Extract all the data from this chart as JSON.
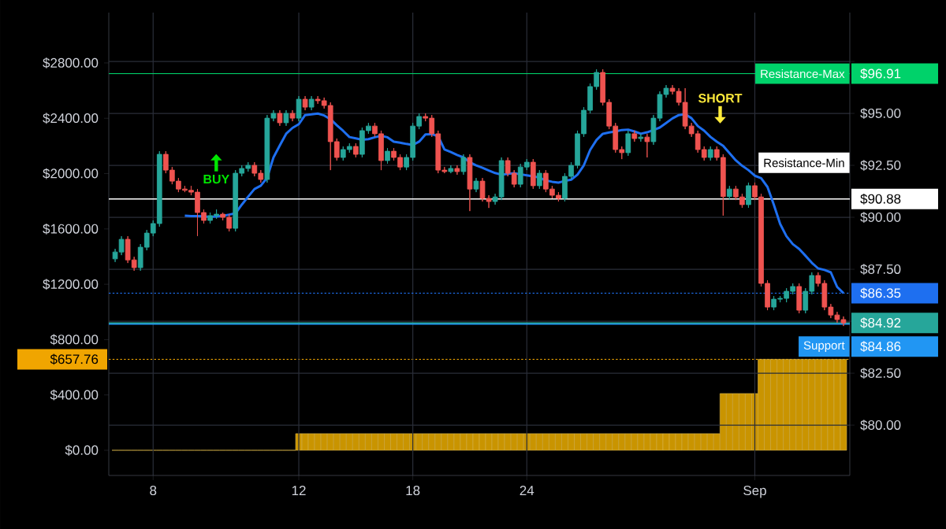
{
  "chart_data": {
    "type": "candlestick",
    "categories": [
      null,
      null,
      null,
      null,
      null,
      null,
      "8",
      null,
      null,
      null,
      null,
      null,
      null,
      null,
      null,
      null,
      null,
      null,
      null,
      null,
      null,
      null,
      null,
      null,
      null,
      null,
      null,
      null,
      null,
      "12",
      null,
      null,
      null,
      null,
      null,
      null,
      null,
      null,
      null,
      null,
      null,
      null,
      null,
      null,
      null,
      null,
      null,
      "18",
      null,
      null,
      null,
      null,
      null,
      null,
      null,
      null,
      null,
      null,
      null,
      null,
      null,
      null,
      null,
      null,
      null,
      "24",
      null,
      null,
      null,
      null,
      null,
      null,
      null,
      null,
      null,
      null,
      null,
      null,
      null,
      null,
      null,
      null,
      null,
      null,
      null,
      null,
      null,
      null,
      null,
      null,
      null,
      null,
      null,
      null,
      null,
      null,
      null,
      null,
      null,
      null,
      null,
      "Sep",
      null,
      null,
      null,
      null,
      null,
      null,
      null,
      null,
      null,
      null,
      null,
      null,
      null,
      null
    ],
    "ohlc": [
      [
        88.0,
        88.48,
        87.85,
        88.33
      ],
      [
        88.33,
        89.09,
        88.18,
        88.94
      ],
      [
        88.94,
        89.09,
        87.8,
        87.95
      ],
      [
        87.95,
        88.1,
        87.43,
        87.58
      ],
      [
        87.58,
        88.71,
        87.43,
        88.56
      ],
      [
        88.56,
        89.39,
        88.41,
        89.24
      ],
      [
        89.24,
        89.85,
        89.09,
        89.7
      ],
      [
        89.7,
        93.18,
        89.55,
        93.03
      ],
      [
        93.03,
        93.18,
        92.12,
        92.27
      ],
      [
        92.27,
        92.42,
        91.59,
        91.74
      ],
      [
        91.74,
        91.89,
        91.21,
        91.36
      ],
      [
        91.36,
        91.51,
        91.21,
        91.3
      ],
      [
        91.3,
        91.51,
        91.06,
        91.21
      ],
      [
        91.21,
        91.36,
        89.1,
        90.23
      ],
      [
        90.23,
        90.38,
        89.7,
        89.85
      ],
      [
        89.85,
        90.23,
        89.7,
        90.08
      ],
      [
        90.08,
        90.38,
        89.93,
        90.15
      ],
      [
        90.15,
        90.23,
        89.85,
        90.0
      ],
      [
        90.0,
        90.15,
        89.32,
        89.47
      ],
      [
        89.47,
        92.27,
        89.32,
        92.12
      ],
      [
        92.12,
        92.5,
        91.97,
        92.35
      ],
      [
        92.35,
        92.65,
        92.2,
        92.5
      ],
      [
        92.5,
        92.65,
        91.97,
        92.12
      ],
      [
        92.12,
        92.27,
        91.67,
        91.82
      ],
      [
        91.82,
        94.92,
        91.67,
        94.77
      ],
      [
        94.77,
        95.15,
        94.62,
        95.0
      ],
      [
        95.0,
        95.15,
        94.4,
        94.55
      ],
      [
        94.55,
        95.15,
        94.4,
        95.0
      ],
      [
        95.0,
        95.15,
        94.62,
        94.77
      ],
      [
        94.77,
        95.83,
        94.62,
        95.68
      ],
      [
        95.68,
        95.83,
        95.15,
        95.3
      ],
      [
        95.3,
        95.83,
        95.15,
        95.68
      ],
      [
        95.68,
        95.83,
        95.46,
        95.61
      ],
      [
        95.61,
        95.76,
        95.23,
        95.38
      ],
      [
        95.38,
        95.53,
        92.27,
        93.64
      ],
      [
        93.64,
        93.79,
        92.73,
        92.88
      ],
      [
        92.88,
        93.41,
        92.73,
        93.26
      ],
      [
        93.26,
        93.56,
        93.11,
        93.41
      ],
      [
        93.41,
        93.56,
        92.88,
        93.03
      ],
      [
        93.03,
        94.32,
        92.88,
        94.17
      ],
      [
        94.17,
        94.54,
        94.02,
        94.39
      ],
      [
        94.39,
        94.54,
        93.87,
        94.02
      ],
      [
        94.02,
        94.17,
        92.27,
        92.73
      ],
      [
        92.73,
        93.33,
        92.58,
        93.18
      ],
      [
        93.18,
        93.33,
        92.73,
        92.88
      ],
      [
        92.88,
        93.03,
        92.27,
        92.42
      ],
      [
        92.42,
        93.03,
        92.27,
        92.88
      ],
      [
        92.88,
        94.54,
        92.73,
        94.39
      ],
      [
        94.39,
        95.0,
        94.24,
        94.85
      ],
      [
        94.85,
        95.0,
        94.62,
        94.77
      ],
      [
        94.77,
        94.92,
        93.87,
        94.02
      ],
      [
        94.02,
        94.17,
        92.12,
        92.27
      ],
      [
        92.27,
        92.42,
        92.12,
        92.2
      ],
      [
        92.2,
        92.5,
        92.12,
        92.35
      ],
      [
        92.35,
        92.5,
        92.05,
        92.2
      ],
      [
        92.2,
        93.03,
        92.05,
        92.88
      ],
      [
        92.88,
        93.03,
        90.3,
        91.36
      ],
      [
        91.36,
        91.89,
        91.21,
        91.74
      ],
      [
        91.74,
        91.89,
        90.76,
        90.91
      ],
      [
        90.91,
        91.06,
        90.45,
        90.76
      ],
      [
        90.76,
        91.13,
        90.61,
        90.98
      ],
      [
        90.98,
        92.88,
        90.83,
        92.73
      ],
      [
        92.73,
        92.88,
        91.97,
        92.12
      ],
      [
        92.12,
        92.27,
        91.44,
        91.59
      ],
      [
        91.59,
        92.57,
        91.44,
        92.42
      ],
      [
        92.42,
        92.8,
        92.27,
        92.65
      ],
      [
        92.65,
        92.8,
        91.37,
        91.52
      ],
      [
        91.52,
        92.27,
        91.37,
        92.12
      ],
      [
        92.12,
        92.27,
        91.21,
        91.36
      ],
      [
        91.36,
        91.51,
        90.91,
        91.06
      ],
      [
        91.06,
        91.21,
        90.76,
        90.91
      ],
      [
        90.91,
        92.12,
        90.76,
        91.97
      ],
      [
        91.97,
        92.65,
        91.82,
        92.5
      ],
      [
        92.5,
        94.17,
        92.35,
        94.02
      ],
      [
        94.02,
        95.3,
        93.87,
        95.15
      ],
      [
        95.15,
        96.44,
        95.0,
        96.29
      ],
      [
        96.29,
        97.12,
        96.14,
        96.97
      ],
      [
        96.97,
        97.12,
        95.38,
        95.53
      ],
      [
        95.53,
        95.68,
        94.24,
        94.39
      ],
      [
        94.39,
        94.54,
        93.11,
        93.26
      ],
      [
        93.26,
        93.41,
        92.8,
        93.11
      ],
      [
        93.11,
        94.17,
        92.96,
        94.02
      ],
      [
        94.02,
        94.17,
        93.64,
        93.79
      ],
      [
        93.79,
        94.01,
        93.64,
        93.86
      ],
      [
        93.86,
        94.01,
        92.88,
        93.64
      ],
      [
        93.64,
        94.92,
        93.49,
        94.77
      ],
      [
        94.77,
        96.06,
        94.62,
        95.91
      ],
      [
        95.91,
        96.36,
        95.76,
        96.21
      ],
      [
        96.21,
        96.36,
        95.91,
        96.06
      ],
      [
        96.06,
        96.21,
        95.38,
        95.53
      ],
      [
        95.53,
        96.21,
        94.24,
        94.39
      ],
      [
        94.39,
        94.54,
        93.87,
        94.02
      ],
      [
        94.02,
        94.17,
        93.11,
        93.26
      ],
      [
        93.26,
        93.41,
        92.73,
        92.88
      ],
      [
        92.88,
        93.41,
        92.73,
        93.26
      ],
      [
        93.26,
        93.41,
        92.73,
        92.88
      ],
      [
        92.88,
        93.03,
        90.08,
        91.0
      ],
      [
        91.0,
        91.51,
        90.85,
        91.36
      ],
      [
        91.36,
        91.51,
        90.83,
        90.98
      ],
      [
        90.98,
        91.13,
        90.46,
        90.61
      ],
      [
        90.61,
        91.67,
        90.46,
        91.52
      ],
      [
        91.52,
        91.67,
        90.83,
        90.98
      ],
      [
        90.98,
        91.13,
        86.67,
        86.82
      ],
      [
        86.82,
        86.97,
        85.53,
        85.68
      ],
      [
        85.68,
        86.21,
        85.53,
        86.06
      ],
      [
        86.06,
        86.21,
        85.91,
        86.1
      ],
      [
        86.1,
        86.59,
        85.91,
        86.44
      ],
      [
        86.44,
        86.82,
        86.29,
        86.67
      ],
      [
        86.67,
        86.82,
        85.38,
        85.53
      ],
      [
        85.53,
        86.59,
        85.38,
        86.44
      ],
      [
        86.44,
        87.35,
        86.29,
        87.2
      ],
      [
        87.2,
        87.35,
        86.67,
        86.82
      ],
      [
        86.82,
        86.97,
        85.53,
        85.68
      ],
      [
        85.68,
        85.83,
        85.15,
        85.3
      ],
      [
        85.3,
        85.45,
        84.93,
        85.08
      ],
      [
        85.08,
        85.23,
        84.77,
        84.92
      ]
    ],
    "series": [
      {
        "type": "line",
        "color": "#1e6ff0",
        "values": [
          null,
          null,
          null,
          null,
          null,
          null,
          null,
          null,
          null,
          null,
          null,
          90.08,
          90.06,
          90.06,
          90.04,
          90.02,
          90.04,
          90.07,
          90.13,
          90.19,
          90.61,
          90.99,
          91.36,
          91.52,
          91.9,
          92.88,
          93.46,
          94.02,
          94.3,
          94.48,
          94.92,
          94.95,
          94.99,
          94.9,
          94.72,
          94.43,
          94.16,
          93.86,
          93.8,
          93.73,
          93.76,
          93.85,
          93.92,
          93.85,
          93.64,
          93.59,
          93.53,
          93.48,
          93.64,
          93.99,
          94.0,
          93.9,
          93.26,
          93.14,
          93.0,
          92.88,
          92.65,
          92.5,
          92.38,
          92.25,
          92.13,
          92.05,
          92.09,
          92.12,
          92.07,
          92.02,
          91.97,
          91.91,
          91.77,
          91.71,
          91.67,
          91.75,
          91.81,
          92.05,
          92.5,
          93.24,
          93.72,
          94.02,
          94.08,
          94.13,
          94.2,
          94.22,
          94.13,
          94.02,
          94.09,
          94.2,
          94.32,
          94.54,
          94.76,
          94.92,
          94.96,
          94.77,
          94.39,
          94.17,
          93.87,
          93.64,
          93.44,
          93.09,
          92.74,
          92.48,
          92.27,
          92.0,
          91.88,
          91.46,
          90.61,
          89.68,
          89.09,
          88.71,
          88.48,
          88.15,
          87.81,
          87.54,
          87.47,
          87.35,
          86.65,
          86.35
        ]
      },
      {
        "type": "bar",
        "axis": "y2",
        "color": "#c99400",
        "values": [
          0,
          0,
          0,
          0,
          0,
          0,
          0,
          0,
          0,
          0,
          0,
          0,
          0,
          0,
          0,
          0,
          0,
          0,
          0,
          0,
          0,
          0,
          0,
          0,
          0,
          0,
          0,
          0,
          0,
          120,
          120,
          120,
          120,
          120,
          120,
          120,
          120,
          120,
          120,
          120,
          120,
          120,
          120,
          120,
          120,
          120,
          120,
          120,
          120,
          120,
          120,
          120,
          120,
          120,
          120,
          120,
          120,
          120,
          120,
          120,
          120,
          120,
          120,
          120,
          120,
          120,
          120,
          120,
          120,
          120,
          120,
          120,
          120,
          120,
          120,
          120,
          120,
          120,
          120,
          120,
          120,
          120,
          120,
          120,
          120,
          120,
          120,
          120,
          120,
          120,
          120,
          120,
          120,
          120,
          120,
          120,
          410,
          410,
          410,
          410,
          410,
          410,
          657.76,
          657.76,
          657.76,
          657.76,
          657.76,
          657.76,
          657.76,
          657.76,
          657.76,
          657.76,
          657.76,
          657.76,
          657.76,
          657.76
        ]
      }
    ],
    "ylim": [
      77.58,
      99.85
    ],
    "yticks": [
      {
        "value": 97.5,
        "label": null
      },
      {
        "value": 96.91,
        "label": "$96.91"
      },
      {
        "value": 95,
        "label": "$95.00"
      },
      {
        "value": 92.5,
        "label": "$92.50"
      },
      {
        "value": 90.88,
        "label": "$90.88"
      },
      {
        "value": 90,
        "label": "$90.00"
      },
      {
        "value": 87.5,
        "label": "$87.50"
      },
      {
        "value": 86.35,
        "label": "$86.35"
      },
      {
        "value": 85,
        "label": null
      },
      {
        "value": 84.92,
        "label": "$84.92"
      },
      {
        "value": 82.5,
        "label": "$82.50"
      },
      {
        "value": 80,
        "label": "$80.00"
      }
    ],
    "y2lim": [
      -182,
      3164
    ],
    "y2ticks": [
      {
        "value": 0,
        "label": "$0.00"
      },
      {
        "value": 400,
        "label": "$400.00"
      },
      {
        "value": 657.76,
        "label": "$657.76"
      },
      {
        "value": 800,
        "label": "$800.00"
      },
      {
        "value": 1200,
        "label": "$1200.00"
      },
      {
        "value": 1600,
        "label": "$1600.00"
      },
      {
        "value": 2000,
        "label": "$2000.00"
      },
      {
        "value": 2400,
        "label": "$2400.00"
      },
      {
        "value": 2800,
        "label": "$2800.00"
      }
    ],
    "ref_lines": [
      {
        "axis": "y",
        "value": 96.91,
        "label": "Resistance-Max",
        "color": "#00d26a"
      },
      {
        "axis": "y",
        "value": 90.88,
        "label": "Resistance-Min",
        "color": "#ffffff"
      },
      {
        "axis": "y",
        "value": 86.35,
        "color": "#1e6ff0",
        "line_style": "dotted"
      },
      {
        "axis": "y",
        "value": 84.92,
        "color": "#26a69a"
      },
      {
        "axis": "y",
        "value": 84.86,
        "label": "Support",
        "color": "#2196f3"
      },
      {
        "axis": "y2",
        "value": 657.76,
        "color": "#f0a500",
        "line_style": "dotted"
      }
    ],
    "annotations": [
      "BUY",
      "SHORT",
      "$84.86"
    ],
    "grid": true
  }
}
